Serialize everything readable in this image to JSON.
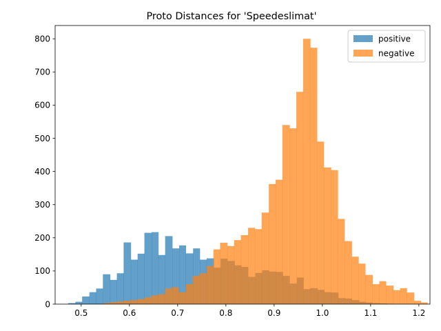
{
  "chart_data": {
    "type": "bar",
    "title": "Proto Distances for 'Speedeslimat'",
    "xlabel": "",
    "ylabel": "",
    "xlim": [
      0.446,
      1.223
    ],
    "ylim": [
      0,
      840
    ],
    "xticks": [
      0.5,
      0.6,
      0.7,
      0.8,
      0.9,
      1.0,
      1.1,
      1.2
    ],
    "xtick_labels": [
      "0.5",
      "0.6",
      "0.7",
      "0.8",
      "0.9",
      "1.0",
      "1.1",
      "1.2"
    ],
    "yticks": [
      0,
      100,
      200,
      300,
      400,
      500,
      600,
      700,
      800
    ],
    "ytick_labels": [
      "0",
      "100",
      "200",
      "300",
      "400",
      "500",
      "600",
      "700",
      "800"
    ],
    "legend_position": "top-right",
    "series": [
      {
        "name": "positive",
        "color": "#1f77b4",
        "bins": [
          [
            0.473,
            0.488,
            3
          ],
          [
            0.488,
            0.502,
            7
          ],
          [
            0.502,
            0.517,
            23
          ],
          [
            0.517,
            0.531,
            36
          ],
          [
            0.531,
            0.545,
            47
          ],
          [
            0.545,
            0.56,
            90
          ],
          [
            0.56,
            0.574,
            73
          ],
          [
            0.574,
            0.588,
            93
          ],
          [
            0.588,
            0.603,
            186
          ],
          [
            0.603,
            0.617,
            134
          ],
          [
            0.617,
            0.631,
            152
          ],
          [
            0.631,
            0.646,
            215
          ],
          [
            0.646,
            0.66,
            217
          ],
          [
            0.66,
            0.674,
            148
          ],
          [
            0.674,
            0.689,
            205
          ],
          [
            0.689,
            0.703,
            168
          ],
          [
            0.703,
            0.717,
            177
          ],
          [
            0.717,
            0.732,
            153
          ],
          [
            0.732,
            0.746,
            168
          ],
          [
            0.746,
            0.76,
            134
          ],
          [
            0.76,
            0.775,
            138
          ],
          [
            0.775,
            0.789,
            110
          ],
          [
            0.789,
            0.803,
            137
          ],
          [
            0.803,
            0.818,
            130
          ],
          [
            0.818,
            0.832,
            117
          ],
          [
            0.832,
            0.846,
            112
          ],
          [
            0.846,
            0.861,
            82
          ],
          [
            0.861,
            0.875,
            94
          ],
          [
            0.875,
            0.889,
            102
          ],
          [
            0.889,
            0.904,
            98
          ],
          [
            0.904,
            0.918,
            97
          ],
          [
            0.918,
            0.932,
            85
          ],
          [
            0.932,
            0.947,
            62
          ],
          [
            0.947,
            0.961,
            80
          ],
          [
            0.961,
            0.975,
            45
          ],
          [
            0.975,
            0.99,
            48
          ],
          [
            0.99,
            1.004,
            43
          ],
          [
            1.004,
            1.018,
            36
          ],
          [
            1.018,
            1.033,
            35
          ],
          [
            1.033,
            1.047,
            18
          ],
          [
            1.047,
            1.061,
            17
          ],
          [
            1.061,
            1.076,
            12
          ],
          [
            1.076,
            1.09,
            7
          ],
          [
            1.09,
            1.104,
            5
          ],
          [
            1.104,
            1.119,
            3
          ],
          [
            1.119,
            1.133,
            2
          ],
          [
            1.133,
            1.147,
            1
          ]
        ]
      },
      {
        "name": "negative",
        "color": "#ff7f0e",
        "bins": [
          [
            0.545,
            0.559,
            3
          ],
          [
            0.559,
            0.573,
            6
          ],
          [
            0.573,
            0.588,
            8
          ],
          [
            0.588,
            0.602,
            10
          ],
          [
            0.602,
            0.616,
            12
          ],
          [
            0.616,
            0.631,
            15
          ],
          [
            0.631,
            0.645,
            20
          ],
          [
            0.645,
            0.659,
            26
          ],
          [
            0.659,
            0.674,
            30
          ],
          [
            0.674,
            0.688,
            47
          ],
          [
            0.688,
            0.702,
            51
          ],
          [
            0.702,
            0.717,
            36
          ],
          [
            0.717,
            0.731,
            60
          ],
          [
            0.731,
            0.745,
            85
          ],
          [
            0.745,
            0.76,
            93
          ],
          [
            0.76,
            0.774,
            115
          ],
          [
            0.774,
            0.788,
            165
          ],
          [
            0.788,
            0.803,
            185
          ],
          [
            0.803,
            0.817,
            175
          ],
          [
            0.817,
            0.831,
            193
          ],
          [
            0.831,
            0.846,
            208
          ],
          [
            0.846,
            0.86,
            230
          ],
          [
            0.86,
            0.874,
            226
          ],
          [
            0.874,
            0.889,
            276
          ],
          [
            0.889,
            0.903,
            362
          ],
          [
            0.903,
            0.917,
            375
          ],
          [
            0.917,
            0.932,
            540
          ],
          [
            0.932,
            0.946,
            530
          ],
          [
            0.946,
            0.96,
            640
          ],
          [
            0.96,
            0.975,
            800
          ],
          [
            0.975,
            0.989,
            773
          ],
          [
            0.989,
            1.003,
            490
          ],
          [
            1.003,
            1.018,
            412
          ],
          [
            1.018,
            1.032,
            404
          ],
          [
            1.032,
            1.046,
            257
          ],
          [
            1.046,
            1.061,
            190
          ],
          [
            1.061,
            1.075,
            143
          ],
          [
            1.075,
            1.089,
            122
          ],
          [
            1.089,
            1.104,
            88
          ],
          [
            1.104,
            1.118,
            60
          ],
          [
            1.118,
            1.132,
            69
          ],
          [
            1.132,
            1.147,
            56
          ],
          [
            1.147,
            1.161,
            42
          ],
          [
            1.161,
            1.175,
            48
          ],
          [
            1.175,
            1.19,
            35
          ],
          [
            1.19,
            1.204,
            10
          ],
          [
            1.204,
            1.218,
            5
          ]
        ]
      }
    ]
  }
}
